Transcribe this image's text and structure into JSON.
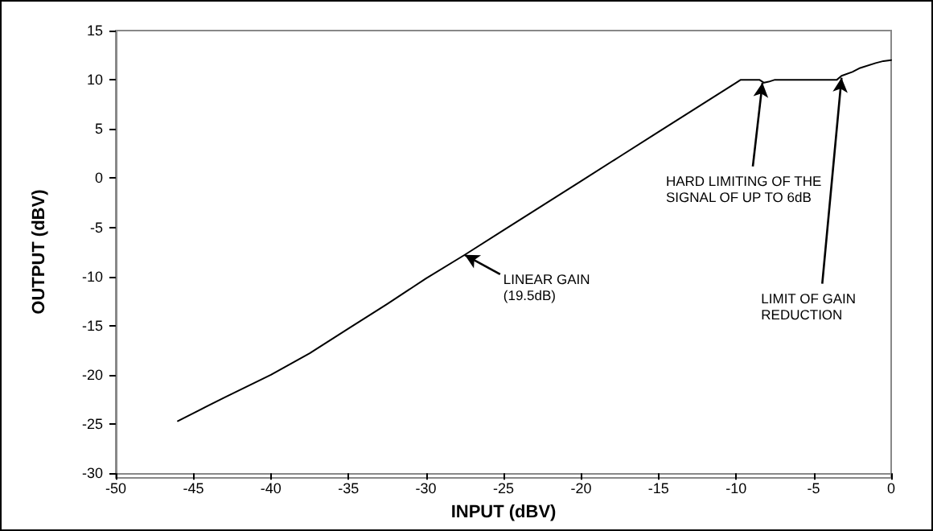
{
  "chart_data": {
    "type": "line",
    "xlabel": "INPUT (dBV)",
    "ylabel": "OUTPUT (dBV)",
    "series": [
      {
        "color": "#000000",
        "x": [
          -46,
          -43,
          -40,
          -37.5,
          -35,
          -32.5,
          -30,
          -27.5,
          -25,
          -22.5,
          -20,
          -17.5,
          -15,
          -12.5,
          -10,
          -9.7,
          -8.5,
          -8.2,
          -7.9,
          -7.5,
          -5,
          -3.5,
          -3.2,
          -2.5,
          -2,
          -1,
          -0.5,
          0
        ],
        "values": [
          -24.7,
          -22.3,
          -20,
          -17.8,
          -15.3,
          -12.8,
          -10.2,
          -7.8,
          -5.3,
          -2.8,
          -0.3,
          2.2,
          4.7,
          7.2,
          9.7,
          10,
          10,
          9.7,
          9.8,
          10,
          10,
          10,
          10.4,
          10.8,
          11.2,
          11.7,
          11.9,
          12
        ]
      }
    ],
    "xlim": [
      -50,
      0
    ],
    "xticks": [
      -50,
      -45,
      -40,
      -35,
      -30,
      -25,
      -20,
      -15,
      -10,
      -5,
      0
    ],
    "ylim": [
      -30,
      15
    ],
    "yticks": [
      -30,
      -25,
      -20,
      -15,
      -10,
      -5,
      0,
      5,
      10,
      15
    ],
    "grid": false,
    "marker": "none",
    "line_style": "solid",
    "annotations": [
      {
        "text": "LINEAR GAIN\n(19.5dB)",
        "x": -27.5,
        "y": -7.8
      },
      {
        "text": "HARD LIMITING OF THE\nSIGNAL OF UP TO 6dB",
        "x": -8.3,
        "y": 9.7
      },
      {
        "text": "LIMIT OF GAIN\nREDUCTION",
        "x": -3.2,
        "y": 10.2
      }
    ]
  }
}
